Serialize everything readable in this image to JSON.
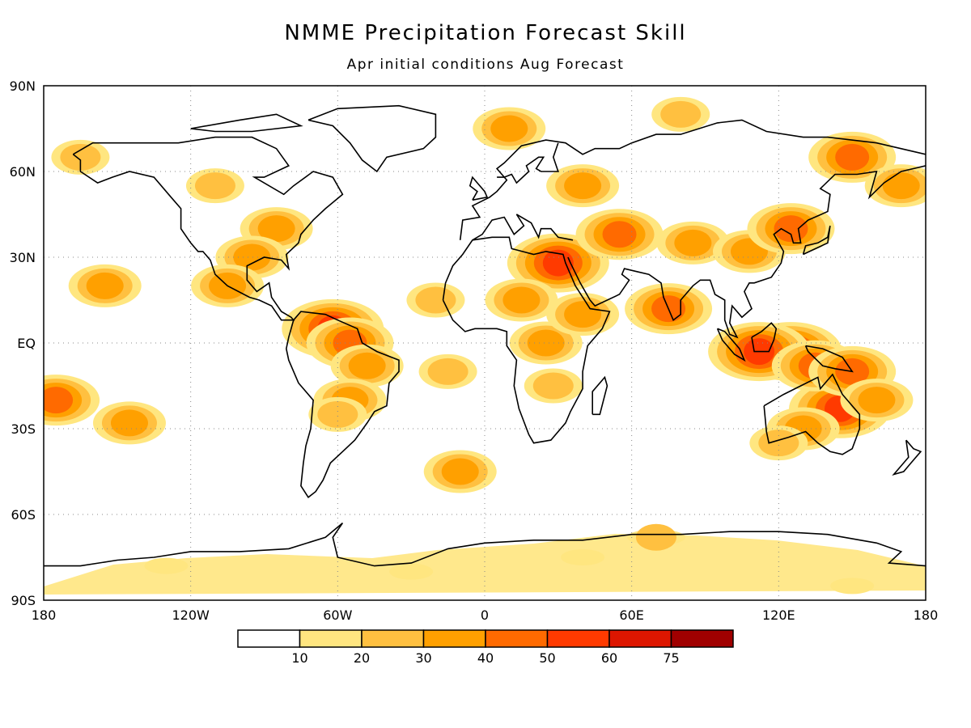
{
  "title": "NMME Precipitation Forecast Skill",
  "subtitle": "Apr initial conditions  Aug Forecast",
  "axes": {
    "lat_ticks": [
      {
        "value": 90,
        "label": "90N"
      },
      {
        "value": 60,
        "label": "60N"
      },
      {
        "value": 30,
        "label": "30N"
      },
      {
        "value": 0,
        "label": "EQ"
      },
      {
        "value": -30,
        "label": "30S"
      },
      {
        "value": -60,
        "label": "60S"
      },
      {
        "value": -90,
        "label": "90S"
      }
    ],
    "lon_ticks": [
      {
        "value": -180,
        "label": "180"
      },
      {
        "value": -120,
        "label": "120W"
      },
      {
        "value": -60,
        "label": "60W"
      },
      {
        "value": 0,
        "label": "0"
      },
      {
        "value": 60,
        "label": "60E"
      },
      {
        "value": 120,
        "label": "120E"
      },
      {
        "value": 180,
        "label": "180"
      }
    ],
    "grid": true
  },
  "colorbar": {
    "colors": [
      "#ffffff",
      "#ffe680",
      "#ffc040",
      "#ffa000",
      "#ff6a00",
      "#ff3a00",
      "#dd1600",
      "#a00000"
    ],
    "labels": [
      "10",
      "20",
      "30",
      "40",
      "50",
      "60",
      "75"
    ]
  },
  "skill_regions": [
    {
      "lon": 145,
      "lat": -23,
      "level": 5
    },
    {
      "lon": 125,
      "lat": -3,
      "level": 5
    },
    {
      "lon": 112,
      "lat": -3,
      "level": 5
    },
    {
      "lon": 135,
      "lat": -8,
      "level": 4
    },
    {
      "lon": 150,
      "lat": -10,
      "level": 4
    },
    {
      "lon": 160,
      "lat": -20,
      "level": 3
    },
    {
      "lon": 130,
      "lat": -30,
      "level": 3
    },
    {
      "lon": 120,
      "lat": -35,
      "level": 2
    },
    {
      "lon": -62,
      "lat": 5,
      "level": 5
    },
    {
      "lon": -55,
      "lat": 0,
      "level": 4
    },
    {
      "lon": -48,
      "lat": -8,
      "level": 3
    },
    {
      "lon": -55,
      "lat": -20,
      "level": 3
    },
    {
      "lon": -60,
      "lat": -25,
      "level": 2
    },
    {
      "lon": 30,
      "lat": 28,
      "level": 5
    },
    {
      "lon": 15,
      "lat": 15,
      "level": 3
    },
    {
      "lon": 25,
      "lat": 0,
      "level": 3
    },
    {
      "lon": 28,
      "lat": -15,
      "level": 2
    },
    {
      "lon": 40,
      "lat": 10,
      "level": 3
    },
    {
      "lon": 75,
      "lat": 12,
      "level": 4
    },
    {
      "lon": 85,
      "lat": 35,
      "level": 3
    },
    {
      "lon": 108,
      "lat": 32,
      "level": 3
    },
    {
      "lon": 125,
      "lat": 40,
      "level": 4
    },
    {
      "lon": 150,
      "lat": 65,
      "level": 4
    },
    {
      "lon": 55,
      "lat": 38,
      "level": 4
    },
    {
      "lon": 40,
      "lat": 55,
      "level": 3
    },
    {
      "lon": -85,
      "lat": 40,
      "level": 3
    },
    {
      "lon": -95,
      "lat": 30,
      "level": 3
    },
    {
      "lon": -105,
      "lat": 20,
      "level": 3
    },
    {
      "lon": -110,
      "lat": 55,
      "level": 2
    },
    {
      "lon": -165,
      "lat": 65,
      "level": 2
    },
    {
      "lon": -175,
      "lat": -20,
      "level": 4
    },
    {
      "lon": -155,
      "lat": 20,
      "level": 3
    },
    {
      "lon": -145,
      "lat": -28,
      "level": 3
    },
    {
      "lon": -20,
      "lat": 15,
      "level": 2
    },
    {
      "lon": -15,
      "lat": -10,
      "level": 2
    },
    {
      "lon": -10,
      "lat": -45,
      "level": 3
    },
    {
      "lon": 10,
      "lat": 75,
      "level": 3
    },
    {
      "lon": 80,
      "lat": 80,
      "level": 2
    },
    {
      "lon": 170,
      "lat": 55,
      "level": 3
    },
    {
      "lon": -30,
      "lat": -80,
      "level": 1
    },
    {
      "lon": 40,
      "lat": -75,
      "level": 1
    },
    {
      "lon": 150,
      "lat": -85,
      "level": 1
    },
    {
      "lon": -130,
      "lat": -78,
      "level": 1
    },
    {
      "lon": 70,
      "lat": -68,
      "level": 2
    }
  ]
}
